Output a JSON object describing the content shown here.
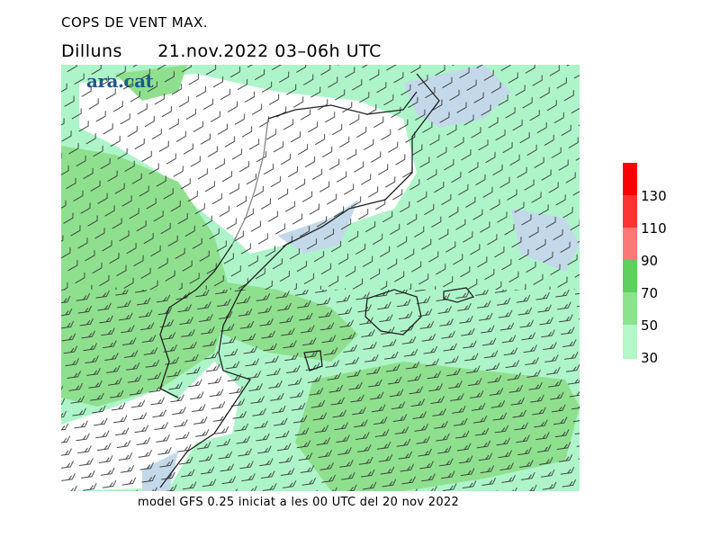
{
  "header": {
    "title": "COPS DE VENT MAX.",
    "day": "Dilluns",
    "datetime": "21.nov.2022 03–06h UTC"
  },
  "logo": {
    "text": "ara.cat"
  },
  "footer": {
    "model_info": "model GFS 0.25 iniciat a les 00 UTC del 20 nov 2022"
  },
  "legend": {
    "labels": [
      "130",
      "110",
      "90",
      "70",
      "50",
      "30"
    ],
    "colors": [
      "#ff0000",
      "#ff3333",
      "#ff7777",
      "#5fcf5f",
      "#8de28d",
      "#b4f7c8"
    ]
  },
  "map_colors": {
    "sea_low": "#c3d9e9",
    "band_30_50": "#adf5c9",
    "band_50_70": "#8ee08e",
    "band_70_90": "#6cd16c",
    "land_calm": "#ffffff"
  },
  "icons": [
    "wind-barb-icon"
  ]
}
